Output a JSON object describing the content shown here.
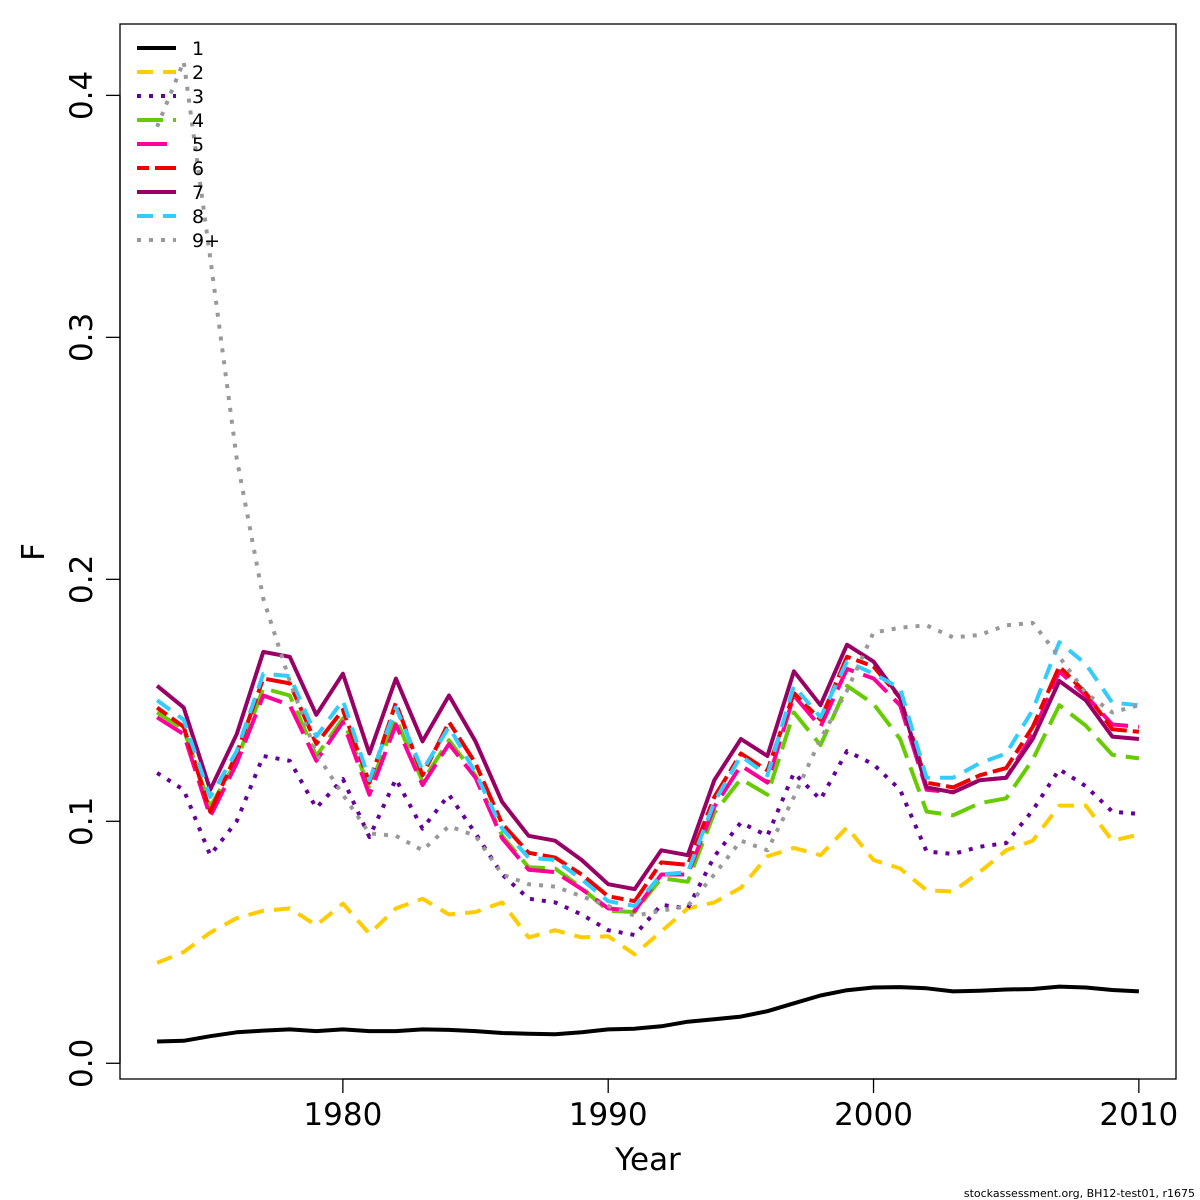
{
  "chart_data": {
    "type": "line",
    "xlabel": "Year",
    "ylabel": "F",
    "xlim": [
      1971.6,
      2011.4
    ],
    "ylim": [
      -0.0065,
      0.4295
    ],
    "xticks": [
      1980,
      1990,
      2000,
      2010
    ],
    "xtick_labels": [
      "1980",
      "1990",
      "2000",
      "2010"
    ],
    "yticks": [
      0.0,
      0.1,
      0.2,
      0.3,
      0.4
    ],
    "ytick_labels": [
      "0.0",
      "0.1",
      "0.2",
      "0.3",
      "0.4"
    ],
    "grid": false,
    "legend_position": "top-left",
    "x": [
      1973,
      1974,
      1975,
      1976,
      1977,
      1978,
      1979,
      1980,
      1981,
      1982,
      1983,
      1984,
      1985,
      1986,
      1987,
      1988,
      1989,
      1990,
      1991,
      1992,
      1993,
      1994,
      1995,
      1996,
      1997,
      1998,
      1999,
      2000,
      2001,
      2002,
      2003,
      2004,
      2005,
      2006,
      2007,
      2008,
      2009,
      2010
    ],
    "series": [
      {
        "name": "1",
        "color": "#000000",
        "dash": "solid",
        "width": 4,
        "values": [
          0.009,
          0.0093,
          0.0112,
          0.0128,
          0.0135,
          0.014,
          0.0133,
          0.014,
          0.0133,
          0.0133,
          0.014,
          0.0138,
          0.0133,
          0.0125,
          0.0122,
          0.012,
          0.0128,
          0.014,
          0.0143,
          0.0153,
          0.0172,
          0.0182,
          0.0193,
          0.0215,
          0.0248,
          0.028,
          0.0302,
          0.0313,
          0.0315,
          0.031,
          0.0297,
          0.03,
          0.0305,
          0.0307,
          0.0317,
          0.0313,
          0.0303,
          0.0297
        ]
      },
      {
        "name": "2",
        "color": "#FFCC00",
        "dash": "dashed",
        "width": 4,
        "values": [
          0.0415,
          0.046,
          0.054,
          0.06,
          0.063,
          0.064,
          0.057,
          0.066,
          0.0535,
          0.064,
          0.068,
          0.0615,
          0.0625,
          0.0665,
          0.052,
          0.055,
          0.052,
          0.0525,
          0.045,
          0.0545,
          0.064,
          0.0665,
          0.0725,
          0.0855,
          0.089,
          0.086,
          0.0975,
          0.084,
          0.0805,
          0.0715,
          0.071,
          0.079,
          0.088,
          0.092,
          0.1065,
          0.1065,
          0.092,
          0.0945
        ]
      },
      {
        "name": "3",
        "color": "#660099",
        "dash": "dotted",
        "width": 4,
        "values": [
          0.12,
          0.113,
          0.086,
          0.1,
          0.127,
          0.125,
          0.1055,
          0.1175,
          0.0935,
          0.1175,
          0.097,
          0.111,
          0.095,
          0.078,
          0.068,
          0.0665,
          0.0615,
          0.055,
          0.053,
          0.0655,
          0.064,
          0.0855,
          0.0995,
          0.094,
          0.12,
          0.109,
          0.129,
          0.1235,
          0.113,
          0.0875,
          0.0865,
          0.0895,
          0.091,
          0.1045,
          0.1215,
          0.1145,
          0.104,
          0.103
        ]
      },
      {
        "name": "4",
        "color": "#66CC00",
        "dash": "longdash",
        "width": 4,
        "values": [
          0.145,
          0.138,
          0.106,
          0.125,
          0.155,
          0.152,
          0.127,
          0.1425,
          0.1135,
          0.1425,
          0.1165,
          0.1335,
          0.119,
          0.094,
          0.081,
          0.0805,
          0.0725,
          0.063,
          0.0625,
          0.0765,
          0.075,
          0.1035,
          0.1175,
          0.111,
          0.145,
          0.1315,
          0.156,
          0.1485,
          0.134,
          0.104,
          0.1025,
          0.1075,
          0.1095,
          0.1255,
          0.148,
          0.1395,
          0.1275,
          0.126
        ]
      },
      {
        "name": "5",
        "color": "#FF0099",
        "dash": "longdash2",
        "width": 4,
        "values": [
          0.143,
          0.136,
          0.102,
          0.124,
          0.152,
          0.148,
          0.125,
          0.141,
          0.111,
          0.14,
          0.115,
          0.132,
          0.118,
          0.093,
          0.08,
          0.079,
          0.072,
          0.064,
          0.063,
          0.078,
          0.078,
          0.106,
          0.123,
          0.116,
          0.152,
          0.139,
          0.163,
          0.159,
          0.148,
          0.113,
          0.112,
          0.117,
          0.118,
          0.136,
          0.162,
          0.152,
          0.14,
          0.139
        ]
      },
      {
        "name": "6",
        "color": "#EE0000",
        "dash": "twodash",
        "width": 4,
        "values": [
          0.147,
          0.139,
          0.104,
          0.128,
          0.159,
          0.157,
          0.132,
          0.146,
          0.116,
          0.149,
          0.119,
          0.141,
          0.124,
          0.099,
          0.087,
          0.085,
          0.078,
          0.069,
          0.067,
          0.083,
          0.082,
          0.11,
          0.128,
          0.121,
          0.153,
          0.142,
          0.168,
          0.164,
          0.151,
          0.116,
          0.114,
          0.119,
          0.122,
          0.139,
          0.164,
          0.153,
          0.138,
          0.137
        ]
      },
      {
        "name": "7",
        "color": "#990066",
        "dash": "solid",
        "width": 4,
        "values": [
          0.156,
          0.147,
          0.113,
          0.136,
          0.17,
          0.168,
          0.144,
          0.161,
          0.128,
          0.159,
          0.133,
          0.152,
          0.133,
          0.108,
          0.094,
          0.092,
          0.084,
          0.074,
          0.072,
          0.088,
          0.086,
          0.117,
          0.134,
          0.127,
          0.162,
          0.148,
          0.173,
          0.166,
          0.151,
          0.114,
          0.112,
          0.117,
          0.118,
          0.134,
          0.158,
          0.15,
          0.135,
          0.134
        ]
      },
      {
        "name": "8",
        "color": "#33CCFF",
        "dash": "dashed",
        "width": 4,
        "values": [
          0.15,
          0.142,
          0.11,
          0.129,
          0.161,
          0.16,
          0.135,
          0.15,
          0.117,
          0.147,
          0.121,
          0.139,
          0.12,
          0.097,
          0.085,
          0.084,
          0.076,
          0.067,
          0.065,
          0.078,
          0.079,
          0.108,
          0.127,
          0.119,
          0.156,
          0.143,
          0.166,
          0.161,
          0.155,
          0.118,
          0.118,
          0.124,
          0.128,
          0.146,
          0.174,
          0.165,
          0.149,
          0.148
        ]
      },
      {
        "name": "9+",
        "color": "#999999",
        "dash": "dotted",
        "width": 4,
        "values": [
          0.387,
          0.414,
          0.333,
          0.25,
          0.192,
          0.158,
          0.128,
          0.111,
          0.095,
          0.094,
          0.088,
          0.098,
          0.094,
          0.078,
          0.074,
          0.073,
          0.069,
          0.065,
          0.061,
          0.063,
          0.065,
          0.078,
          0.092,
          0.088,
          0.11,
          0.134,
          0.154,
          0.178,
          0.18,
          0.181,
          0.176,
          0.177,
          0.181,
          0.182,
          0.168,
          0.153,
          0.145,
          0.148
        ]
      }
    ]
  },
  "footer": {
    "credit": "stockassessment.org, BH12-test01, r1675"
  }
}
